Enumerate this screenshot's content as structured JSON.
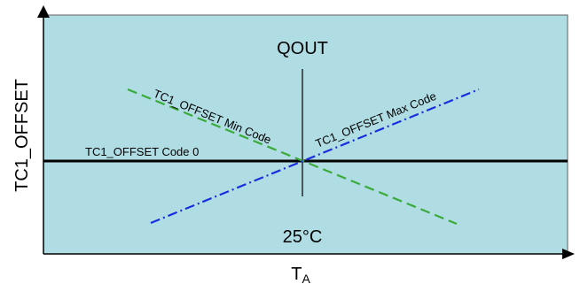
{
  "colors": {
    "plot_background": "#b0dde4",
    "plot_border": "#606060",
    "axis": "#000000",
    "code0_line": "#000000",
    "min_code_line": "#3aaa3a",
    "max_code_line": "#1a2ee0",
    "center_line": "#000000"
  },
  "diagram": {
    "y_axis_label": "TC1_OFFSET",
    "x_axis_label_main": "T",
    "x_axis_label_sub": "A",
    "top_label": "QOUT",
    "bottom_label": "25°C",
    "lines": {
      "code0": "TC1_OFFSET Code 0",
      "min_code": "TC1_OFFSET Min Code",
      "max_code": "TC1_OFFSET Max Code"
    }
  }
}
